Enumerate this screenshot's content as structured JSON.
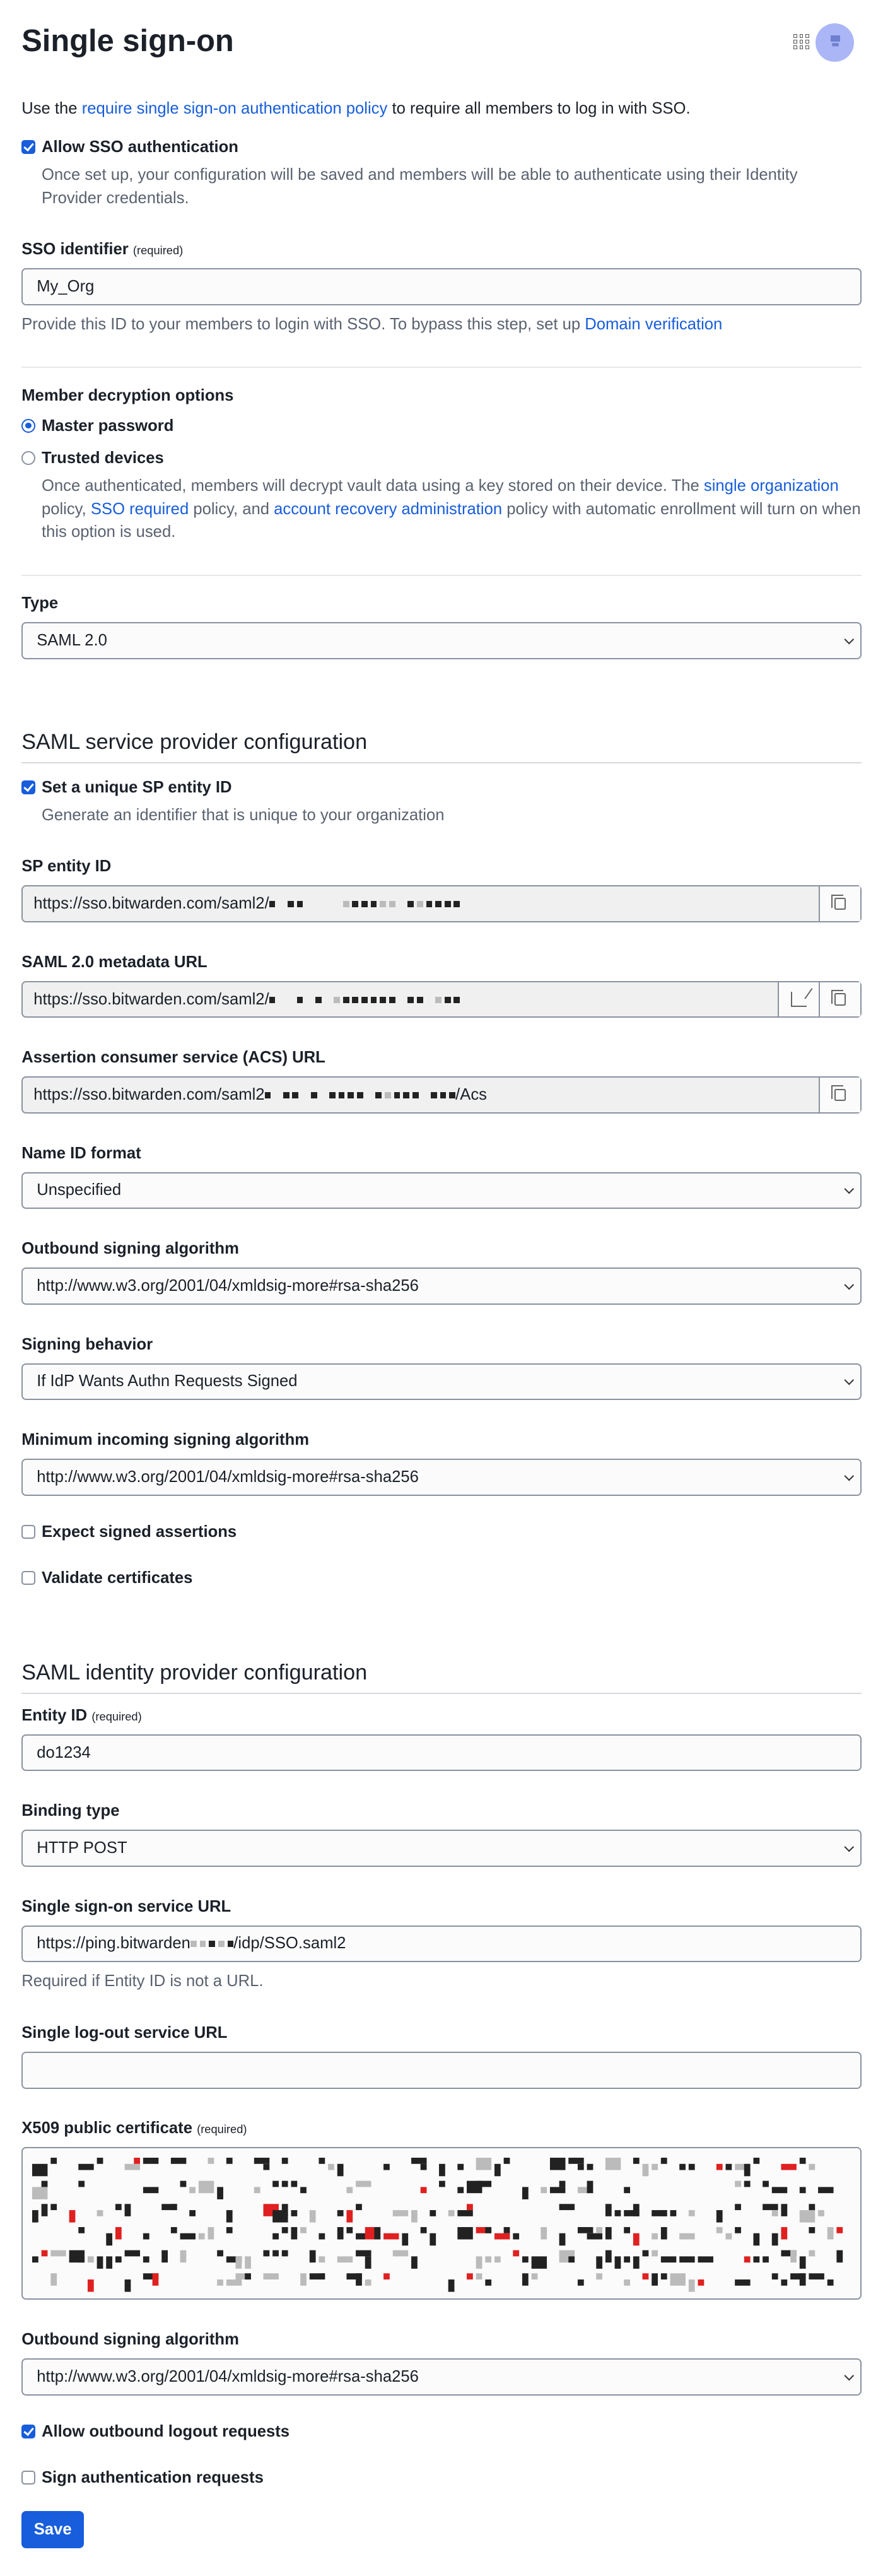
{
  "header": {
    "title": "Single sign-on",
    "apps_icon": "grid-icon",
    "avatar_icon": "avatar"
  },
  "intro": {
    "pre": "Use the ",
    "link": "require single sign-on authentication policy",
    "post": " to require all members to log in with SSO."
  },
  "allow_sso": {
    "label": "Allow SSO authentication",
    "checked": true,
    "help": "Once set up, your configuration will be saved and members will be able to authenticate using their Identity Provider credentials."
  },
  "sso_identifier": {
    "label": "SSO identifier",
    "required": "(required)",
    "value": "My_Org",
    "help_pre": "Provide this ID to your members to login with SSO. To bypass this step, set up ",
    "help_link": "Domain verification"
  },
  "decryption": {
    "label": "Member decryption options",
    "options": [
      {
        "label": "Master password",
        "selected": true
      },
      {
        "label": "Trusted devices",
        "selected": false
      }
    ],
    "help_1": "Once authenticated, members will decrypt vault data using a key stored on their device. The ",
    "link_1": "single organization",
    "help_2": " policy, ",
    "link_2": "SSO required",
    "help_3": " policy, and ",
    "link_3": "account recovery administration",
    "help_4": " policy with automatic enrollment will turn on when this option is used."
  },
  "type": {
    "label": "Type",
    "value": "SAML 2.0"
  },
  "sp": {
    "heading": "SAML service provider configuration",
    "unique_id": {
      "label": "Set a unique SP entity ID",
      "checked": true,
      "help": "Generate an identifier that is unique to your organization"
    },
    "entity_id": {
      "label": "SP entity ID",
      "value_visible": "https://sso.bitwarden.com/saml2/"
    },
    "metadata_url": {
      "label": "SAML 2.0 metadata URL",
      "value_visible": "https://sso.bitwarden.com/saml2/"
    },
    "acs_url": {
      "label": "Assertion consumer service (ACS) URL",
      "value_visible": "https://sso.bitwarden.com/saml2",
      "value_suffix": "/Acs"
    },
    "name_id_format": {
      "label": "Name ID format",
      "value": "Unspecified"
    },
    "outbound_alg": {
      "label": "Outbound signing algorithm",
      "value": "http://www.w3.org/2001/04/xmldsig-more#rsa-sha256"
    },
    "signing_behavior": {
      "label": "Signing behavior",
      "value": "If IdP Wants Authn Requests Signed"
    },
    "min_incoming_alg": {
      "label": "Minimum incoming signing algorithm",
      "value": "http://www.w3.org/2001/04/xmldsig-more#rsa-sha256"
    },
    "expect_signed": {
      "label": "Expect signed assertions",
      "checked": false
    },
    "validate_certs": {
      "label": "Validate certificates",
      "checked": false
    }
  },
  "idp": {
    "heading": "SAML identity provider configuration",
    "entity_id": {
      "label": "Entity ID",
      "required": "(required)",
      "value": "do1234"
    },
    "binding": {
      "label": "Binding type",
      "value": "HTTP POST"
    },
    "sso_url": {
      "label": "Single sign-on service URL",
      "value_prefix": "https://ping.bitwarden",
      "value_suffix": "/idp/SSO.saml2",
      "help": "Required if Entity ID is not a URL."
    },
    "slo_url": {
      "label": "Single log-out service URL",
      "value": ""
    },
    "cert": {
      "label": "X509 public certificate",
      "required": "(required)"
    },
    "outbound_alg": {
      "label": "Outbound signing algorithm",
      "value": "http://www.w3.org/2001/04/xmldsig-more#rsa-sha256"
    },
    "allow_logout": {
      "label": "Allow outbound logout requests",
      "checked": true
    },
    "sign_auth": {
      "label": "Sign authentication requests",
      "checked": false
    }
  },
  "save_label": "Save",
  "colors": {
    "accent": "#175ddc",
    "text": "#1b2029",
    "muted": "#5a6270"
  }
}
